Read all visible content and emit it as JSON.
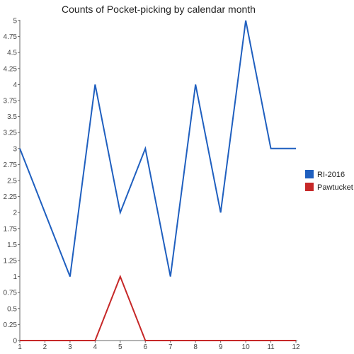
{
  "chart_data": {
    "type": "line",
    "title": "Counts of Pocket-picking by calendar month",
    "xlabel": "",
    "ylabel": "",
    "x": [
      1,
      2,
      3,
      4,
      5,
      6,
      7,
      8,
      9,
      10,
      11,
      12
    ],
    "x_tick_labels": [
      "1",
      "2",
      "3",
      "4",
      "5",
      "6",
      "7",
      "8",
      "9",
      "10",
      "11",
      "12"
    ],
    "ylim": [
      0,
      5
    ],
    "y_ticks": [
      0,
      0.25,
      0.5,
      0.75,
      1,
      1.25,
      1.5,
      1.75,
      2,
      2.25,
      2.5,
      2.75,
      3,
      3.25,
      3.5,
      3.75,
      4,
      4.25,
      4.5,
      4.75,
      5
    ],
    "y_tick_labels": [
      "0",
      "0.25",
      "0.5",
      "0.75",
      "1",
      "1.25",
      "1.5",
      "1.75",
      "2",
      "2.25",
      "2.5",
      "2.75",
      "3",
      "3.25",
      "3.5",
      "3.75",
      "4",
      "4.25",
      "4.5",
      "4.75",
      "5"
    ],
    "grid": false,
    "legend_position": "right",
    "series": [
      {
        "name": "RI-2016",
        "color": "#1f5fbf",
        "values": [
          3,
          2,
          1,
          4,
          2,
          3,
          1,
          4,
          2,
          5,
          3,
          3
        ]
      },
      {
        "name": "Pawtucket",
        "color": "#c62828",
        "values": [
          0,
          0,
          0,
          0,
          1,
          0,
          0,
          0,
          0,
          0,
          0,
          0
        ]
      }
    ]
  }
}
